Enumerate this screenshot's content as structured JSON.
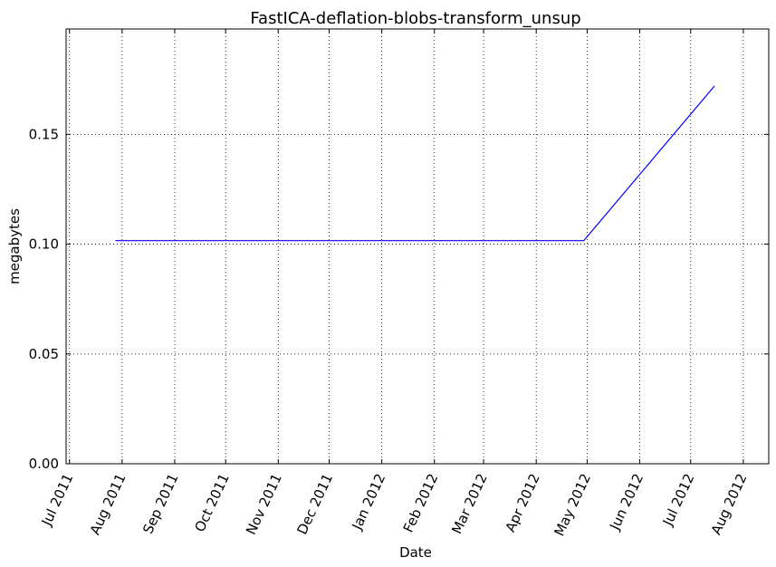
{
  "chart_data": {
    "type": "line",
    "title": "FastICA-deflation-blobs-transform_unsup",
    "xlabel": "Date",
    "ylabel": "megabytes",
    "x_ticks": [
      "Jul 2011",
      "Aug 2011",
      "Sep 2011",
      "Oct 2011",
      "Nov 2011",
      "Dec 2011",
      "Jan 2012",
      "Feb 2012",
      "Mar 2012",
      "Apr 2012",
      "May 2012",
      "Jun 2012",
      "Jul 2012",
      "Aug 2012"
    ],
    "y_ticks": [
      "0.00",
      "0.05",
      "0.10",
      "0.15"
    ],
    "xlim": [
      "2011-06-29",
      "2012-08-16"
    ],
    "ylim": [
      0,
      0.198
    ],
    "grid": true,
    "series": [
      {
        "color": "#0000ff",
        "x": [
          "2011-07-28",
          "2012-04-29",
          "2012-07-15"
        ],
        "y": [
          0.1016,
          0.1016,
          0.172
        ]
      }
    ]
  }
}
